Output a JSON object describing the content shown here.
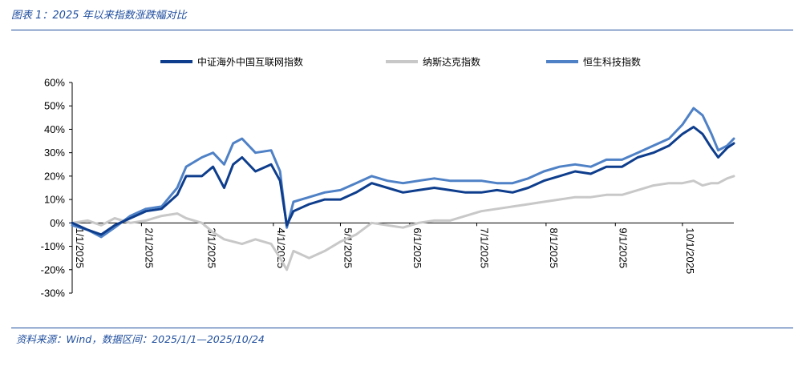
{
  "header": {
    "caption": "图表 1：2025 年以来指数涨跌幅对比"
  },
  "footer": {
    "source": "资料来源：Wind，数据区间：2025/1/1—2025/10/24"
  },
  "chart_data": {
    "type": "line",
    "title": "",
    "xlabel": "",
    "ylabel": "",
    "ylim": [
      -30,
      60
    ],
    "y_ticks": [
      "60%",
      "50%",
      "40%",
      "30%",
      "20%",
      "10%",
      "0%",
      "-10%",
      "-20%",
      "-30%"
    ],
    "x_ticks": [
      "1/1/2025",
      "2/1/2025",
      "3/1/2025",
      "4/1/2025",
      "5/1/2025",
      "6/1/2025",
      "7/1/2025",
      "8/1/2025",
      "9/1/2025",
      "10/1/2025"
    ],
    "x_range": [
      "2025-01-01",
      "2025-10-24"
    ],
    "legend_position": "top",
    "series": [
      {
        "name": "中证海外中国互联网指数",
        "color": "#0d3d8c",
        "points": [
          [
            "2025-01-01",
            0
          ],
          [
            "2025-01-08",
            -3
          ],
          [
            "2025-01-14",
            -5
          ],
          [
            "2025-01-20",
            -1
          ],
          [
            "2025-01-27",
            2
          ],
          [
            "2025-02-03",
            5
          ],
          [
            "2025-02-10",
            6
          ],
          [
            "2025-02-17",
            12
          ],
          [
            "2025-02-21",
            20
          ],
          [
            "2025-02-28",
            20
          ],
          [
            "2025-03-05",
            24
          ],
          [
            "2025-03-10",
            15
          ],
          [
            "2025-03-14",
            25
          ],
          [
            "2025-03-18",
            28
          ],
          [
            "2025-03-24",
            22
          ],
          [
            "2025-03-31",
            25
          ],
          [
            "2025-04-04",
            18
          ],
          [
            "2025-04-07",
            -1
          ],
          [
            "2025-04-10",
            5
          ],
          [
            "2025-04-17",
            8
          ],
          [
            "2025-04-24",
            10
          ],
          [
            "2025-05-01",
            10
          ],
          [
            "2025-05-08",
            13
          ],
          [
            "2025-05-15",
            17
          ],
          [
            "2025-05-22",
            15
          ],
          [
            "2025-05-29",
            13
          ],
          [
            "2025-06-05",
            14
          ],
          [
            "2025-06-12",
            15
          ],
          [
            "2025-06-19",
            14
          ],
          [
            "2025-06-26",
            13
          ],
          [
            "2025-07-03",
            13
          ],
          [
            "2025-07-10",
            14
          ],
          [
            "2025-07-17",
            13
          ],
          [
            "2025-07-24",
            15
          ],
          [
            "2025-07-31",
            18
          ],
          [
            "2025-08-07",
            20
          ],
          [
            "2025-08-14",
            22
          ],
          [
            "2025-08-21",
            21
          ],
          [
            "2025-08-28",
            24
          ],
          [
            "2025-09-04",
            24
          ],
          [
            "2025-09-11",
            28
          ],
          [
            "2025-09-18",
            30
          ],
          [
            "2025-09-25",
            33
          ],
          [
            "2025-10-01",
            38
          ],
          [
            "2025-10-06",
            41
          ],
          [
            "2025-10-10",
            38
          ],
          [
            "2025-10-14",
            32
          ],
          [
            "2025-10-17",
            28
          ],
          [
            "2025-10-21",
            32
          ],
          [
            "2025-10-24",
            34
          ]
        ]
      },
      {
        "name": "纳斯达克指数",
        "color": "#c8c8c8",
        "points": [
          [
            "2025-01-01",
            0
          ],
          [
            "2025-01-08",
            1
          ],
          [
            "2025-01-14",
            -1
          ],
          [
            "2025-01-20",
            2
          ],
          [
            "2025-01-27",
            0
          ],
          [
            "2025-02-03",
            1
          ],
          [
            "2025-02-10",
            3
          ],
          [
            "2025-02-17",
            4
          ],
          [
            "2025-02-21",
            2
          ],
          [
            "2025-02-28",
            0
          ],
          [
            "2025-03-05",
            -4
          ],
          [
            "2025-03-10",
            -7
          ],
          [
            "2025-03-14",
            -8
          ],
          [
            "2025-03-18",
            -9
          ],
          [
            "2025-03-24",
            -7
          ],
          [
            "2025-03-31",
            -9
          ],
          [
            "2025-04-04",
            -15
          ],
          [
            "2025-04-07",
            -20
          ],
          [
            "2025-04-10",
            -12
          ],
          [
            "2025-04-17",
            -15
          ],
          [
            "2025-04-24",
            -12
          ],
          [
            "2025-05-01",
            -8
          ],
          [
            "2025-05-08",
            -5
          ],
          [
            "2025-05-15",
            0
          ],
          [
            "2025-05-22",
            -1
          ],
          [
            "2025-05-29",
            -2
          ],
          [
            "2025-06-05",
            0
          ],
          [
            "2025-06-12",
            1
          ],
          [
            "2025-06-19",
            1
          ],
          [
            "2025-06-26",
            3
          ],
          [
            "2025-07-03",
            5
          ],
          [
            "2025-07-10",
            6
          ],
          [
            "2025-07-17",
            7
          ],
          [
            "2025-07-24",
            8
          ],
          [
            "2025-07-31",
            9
          ],
          [
            "2025-08-07",
            10
          ],
          [
            "2025-08-14",
            11
          ],
          [
            "2025-08-21",
            11
          ],
          [
            "2025-08-28",
            12
          ],
          [
            "2025-09-04",
            12
          ],
          [
            "2025-09-11",
            14
          ],
          [
            "2025-09-18",
            16
          ],
          [
            "2025-09-25",
            17
          ],
          [
            "2025-10-01",
            17
          ],
          [
            "2025-10-06",
            18
          ],
          [
            "2025-10-10",
            16
          ],
          [
            "2025-10-14",
            17
          ],
          [
            "2025-10-17",
            17
          ],
          [
            "2025-10-21",
            19
          ],
          [
            "2025-10-24",
            20
          ]
        ]
      },
      {
        "name": "恒生科技指数",
        "color": "#4f81c6",
        "points": [
          [
            "2025-01-01",
            -1
          ],
          [
            "2025-01-08",
            -3
          ],
          [
            "2025-01-14",
            -6
          ],
          [
            "2025-01-20",
            -2
          ],
          [
            "2025-01-27",
            3
          ],
          [
            "2025-02-03",
            6
          ],
          [
            "2025-02-10",
            7
          ],
          [
            "2025-02-17",
            15
          ],
          [
            "2025-02-21",
            24
          ],
          [
            "2025-02-28",
            28
          ],
          [
            "2025-03-05",
            30
          ],
          [
            "2025-03-10",
            25
          ],
          [
            "2025-03-14",
            34
          ],
          [
            "2025-03-18",
            36
          ],
          [
            "2025-03-24",
            30
          ],
          [
            "2025-03-31",
            31
          ],
          [
            "2025-04-04",
            22
          ],
          [
            "2025-04-07",
            -2
          ],
          [
            "2025-04-10",
            9
          ],
          [
            "2025-04-17",
            11
          ],
          [
            "2025-04-24",
            13
          ],
          [
            "2025-05-01",
            14
          ],
          [
            "2025-05-08",
            17
          ],
          [
            "2025-05-15",
            20
          ],
          [
            "2025-05-22",
            18
          ],
          [
            "2025-05-29",
            17
          ],
          [
            "2025-06-05",
            18
          ],
          [
            "2025-06-12",
            19
          ],
          [
            "2025-06-19",
            18
          ],
          [
            "2025-06-26",
            18
          ],
          [
            "2025-07-03",
            18
          ],
          [
            "2025-07-10",
            17
          ],
          [
            "2025-07-17",
            17
          ],
          [
            "2025-07-24",
            19
          ],
          [
            "2025-07-31",
            22
          ],
          [
            "2025-08-07",
            24
          ],
          [
            "2025-08-14",
            25
          ],
          [
            "2025-08-21",
            24
          ],
          [
            "2025-08-28",
            27
          ],
          [
            "2025-09-04",
            27
          ],
          [
            "2025-09-11",
            30
          ],
          [
            "2025-09-18",
            33
          ],
          [
            "2025-09-25",
            36
          ],
          [
            "2025-10-01",
            42
          ],
          [
            "2025-10-06",
            49
          ],
          [
            "2025-10-10",
            46
          ],
          [
            "2025-10-14",
            38
          ],
          [
            "2025-10-17",
            31
          ],
          [
            "2025-10-21",
            33
          ],
          [
            "2025-10-24",
            36
          ]
        ]
      }
    ]
  }
}
